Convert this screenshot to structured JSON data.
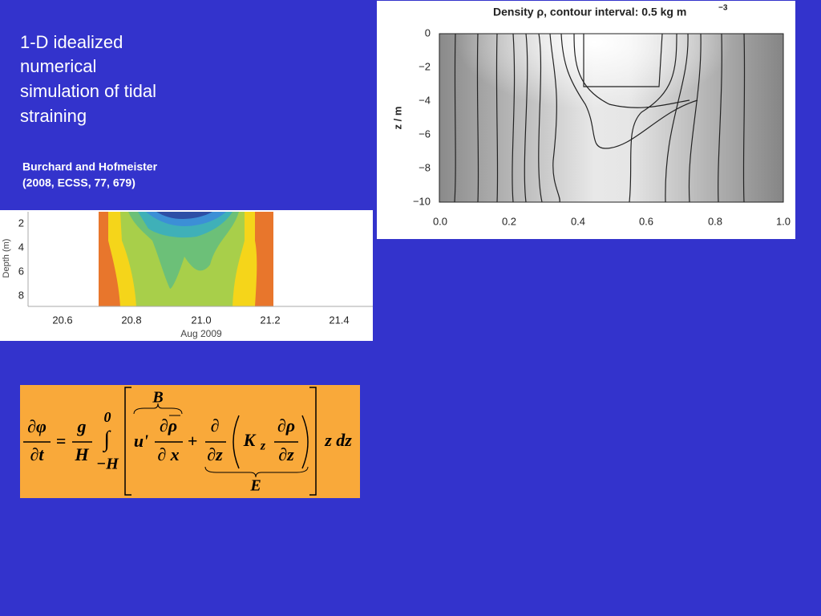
{
  "slide": {
    "title_lines": [
      "1-D idealized",
      "numerical",
      "simulation of tidal",
      "straining"
    ],
    "citation_lines": [
      "Burchard and Hofmeister",
      "(2008, ECSS, 77, 679)"
    ]
  },
  "density_plot": {
    "title": "Density ρ, contour interval: 0.5 kg m",
    "title_exponent": "−3",
    "y_label": "z / m",
    "y_ticks": [
      "0",
      "−2",
      "−4",
      "−6",
      "−8",
      "−10"
    ],
    "x_ticks": [
      "0.0",
      "0.2",
      "0.4",
      "0.6",
      "0.8",
      "1.0"
    ]
  },
  "field_plot": {
    "y_label": "Depth (m)",
    "y_ticks": [
      "2",
      "4",
      "6",
      "8"
    ],
    "x_ticks": [
      "20.6",
      "20.8",
      "21.0",
      "21.2",
      "21.4"
    ],
    "x_label": "Aug 2009"
  },
  "equation": {
    "lhs_num": "∂φ",
    "lhs_den": "∂t",
    "equals": "=",
    "g": "g",
    "H": "H",
    "upper": "0",
    "integral": "∫",
    "lower": "−H",
    "u": "u'",
    "drho": "∂ρ",
    "dx": "∂ x",
    "plus": "+",
    "d": "∂",
    "dz1": "∂z",
    "K": "K",
    "Ksub": "z",
    "drho2": "∂ρ",
    "dz2": "∂z",
    "tail": "z dz",
    "B": "B",
    "E": "E"
  }
}
